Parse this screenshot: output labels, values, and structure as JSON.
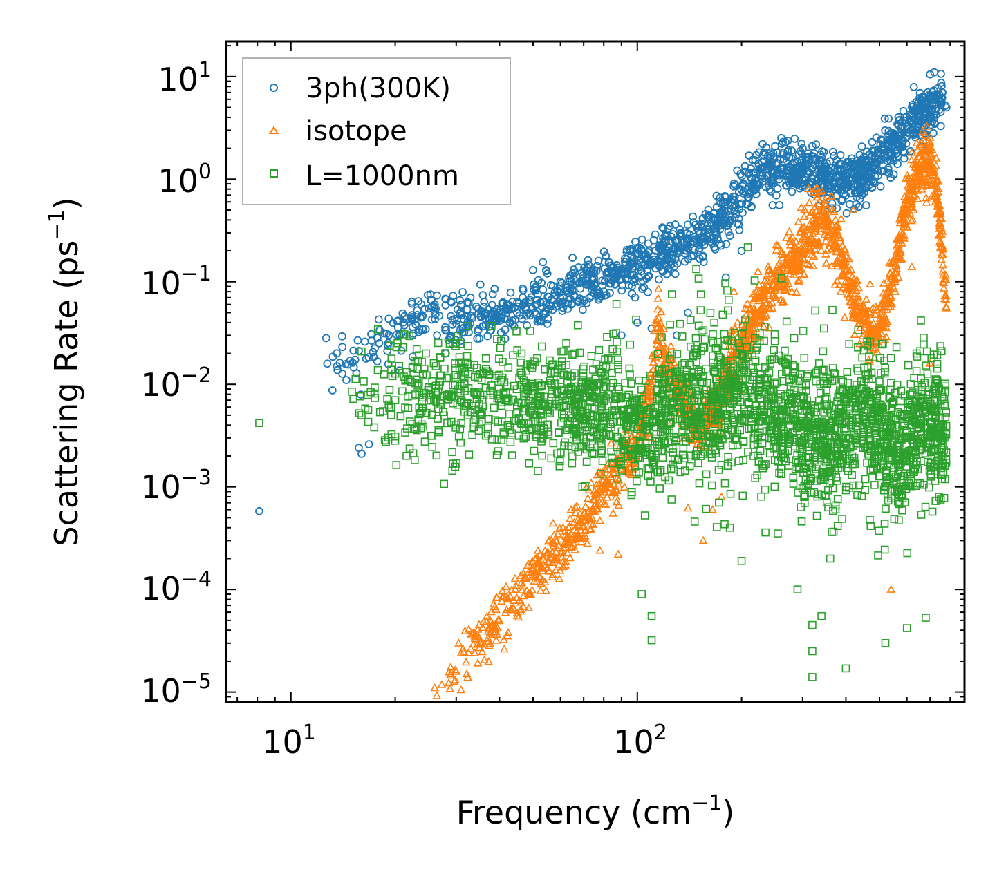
{
  "chart_data": {
    "type": "scatter",
    "xscale": "log",
    "yscale": "log",
    "xlim": [
      6.5,
      880
    ],
    "ylim": [
      8e-06,
      22
    ],
    "xlabel": "Frequency (cm",
    "xlabel_sup": "−1",
    "xlabel_end": ")",
    "ylabel": "Scattering Rate (ps",
    "ylabel_sup": "−1",
    "ylabel_end": ")",
    "x_ticks": [
      {
        "value": 10,
        "base": "10",
        "exp": "1"
      },
      {
        "value": 100,
        "base": "10",
        "exp": "2"
      }
    ],
    "y_ticks": [
      {
        "value": 10,
        "base": "10",
        "exp": "1"
      },
      {
        "value": 1,
        "base": "10",
        "exp": "0"
      },
      {
        "value": 0.1,
        "base": "10",
        "exp": "−1"
      },
      {
        "value": 0.01,
        "base": "10",
        "exp": "−2"
      },
      {
        "value": 0.001,
        "base": "10",
        "exp": "−3"
      },
      {
        "value": 0.0001,
        "base": "10",
        "exp": "−4"
      },
      {
        "value": 1e-05,
        "base": "10",
        "exp": "−5"
      }
    ],
    "legend_position": "top-left",
    "series": [
      {
        "name": "3ph(300K)",
        "marker": "circle",
        "color": "#1f77b4",
        "trend": [
          [
            12,
            0.012
          ],
          [
            25,
            0.05
          ],
          [
            35,
            0.04
          ],
          [
            50,
            0.06
          ],
          [
            70,
            0.09
          ],
          [
            90,
            0.12
          ],
          [
            105,
            0.15
          ],
          [
            130,
            0.2
          ],
          [
            150,
            0.25
          ],
          [
            180,
            0.45
          ],
          [
            230,
            1.2
          ],
          [
            300,
            1.3
          ],
          [
            400,
            0.9
          ],
          [
            470,
            1.2
          ],
          [
            560,
            2.5
          ],
          [
            700,
            5.0
          ],
          [
            760,
            6.0
          ]
        ],
        "points": [
          [
            8.1,
            0.00058
          ],
          [
            15.7,
            0.0024
          ],
          [
            16,
            0.0021
          ],
          [
            16.8,
            0.0026
          ],
          [
            25,
            0.055
          ],
          [
            26,
            0.06
          ],
          [
            28,
            0.02
          ],
          [
            30,
            0.025
          ],
          [
            33,
            0.07
          ],
          [
            35,
            0.028
          ],
          [
            40,
            0.05
          ],
          [
            45,
            0.063
          ],
          [
            50,
            0.13
          ],
          [
            55,
            0.12
          ],
          [
            60,
            0.1
          ],
          [
            65,
            0.12
          ],
          [
            80,
            0.08
          ],
          [
            90,
            0.03
          ],
          [
            100,
            0.04
          ],
          [
            110,
            0.035
          ],
          [
            115,
            0.035
          ],
          [
            130,
            0.03
          ],
          [
            140,
            0.05
          ],
          [
            180,
            0.11
          ],
          [
            200,
            0.2
          ],
          [
            210,
            1.7
          ],
          [
            230,
            2.2
          ],
          [
            300,
            2.0
          ],
          [
            320,
            2.1
          ],
          [
            700,
            10.5
          ],
          [
            720,
            11.0
          ],
          [
            760,
            7.0
          ],
          [
            775,
            5.2
          ],
          [
            780,
            5.0
          ]
        ]
      },
      {
        "name": "isotope",
        "marker": "triangle",
        "color": "#ff7f0e",
        "trend": [
          [
            26,
            1e-05
          ],
          [
            30,
            2e-05
          ],
          [
            40,
            5e-05
          ],
          [
            50,
            0.00013
          ],
          [
            60,
            0.00025
          ],
          [
            70,
            0.00045
          ],
          [
            80,
            0.001
          ],
          [
            90,
            0.0016
          ],
          [
            100,
            0.0025
          ],
          [
            110,
            0.01
          ],
          [
            115,
            0.04
          ],
          [
            120,
            0.015
          ],
          [
            130,
            0.008
          ],
          [
            150,
            0.004
          ],
          [
            170,
            0.006
          ],
          [
            185,
            0.015
          ],
          [
            195,
            0.02
          ],
          [
            205,
            0.03
          ],
          [
            220,
            0.05
          ],
          [
            240,
            0.08
          ],
          [
            260,
            0.12
          ],
          [
            280,
            0.15
          ],
          [
            300,
            0.2
          ],
          [
            320,
            0.3
          ],
          [
            340,
            0.45
          ],
          [
            360,
            0.35
          ],
          [
            380,
            0.2
          ],
          [
            400,
            0.12
          ],
          [
            420,
            0.07
          ],
          [
            450,
            0.04
          ],
          [
            480,
            0.03
          ],
          [
            520,
            0.05
          ],
          [
            560,
            0.15
          ],
          [
            600,
            0.6
          ],
          [
            650,
            1.2
          ],
          [
            700,
            1.5
          ],
          [
            740,
            0.6
          ],
          [
            780,
            0.05
          ]
        ],
        "points": [
          [
            26,
            1.1e-05
          ],
          [
            31,
            1.05e-05
          ],
          [
            35,
            2.7e-05
          ],
          [
            38,
            4.5e-05
          ],
          [
            78,
            0.00024
          ],
          [
            88,
            0.00022
          ],
          [
            115,
            0.085
          ],
          [
            140,
            0.00062
          ],
          [
            155,
            0.0003
          ],
          [
            165,
            0.0006
          ],
          [
            175,
            0.0008
          ],
          [
            190,
            0.08
          ],
          [
            340,
            0.7
          ],
          [
            420,
            0.5
          ],
          [
            470,
            0.095
          ],
          [
            620,
            0.14
          ],
          [
            680,
            1.7
          ],
          [
            730,
            1.6
          ],
          [
            540,
            0.0001
          ],
          [
            700,
            0.016
          ]
        ]
      },
      {
        "name": "L=1000nm",
        "marker": "square",
        "color": "#2ca02c",
        "trend": [
          [
            15,
            0.007
          ],
          [
            25,
            0.0075
          ],
          [
            40,
            0.0075
          ],
          [
            60,
            0.007
          ],
          [
            75,
            0.006
          ],
          [
            90,
            0.005
          ],
          [
            100,
            0.004
          ],
          [
            110,
            0.0035
          ],
          [
            120,
            0.005
          ],
          [
            140,
            0.007
          ],
          [
            160,
            0.006
          ],
          [
            180,
            0.008
          ],
          [
            200,
            0.008
          ],
          [
            220,
            0.006
          ],
          [
            260,
            0.005
          ],
          [
            300,
            0.004
          ],
          [
            340,
            0.003
          ],
          [
            380,
            0.003
          ],
          [
            420,
            0.005
          ],
          [
            460,
            0.004
          ],
          [
            520,
            0.003
          ],
          [
            560,
            0.002
          ],
          [
            600,
            0.003
          ],
          [
            650,
            0.004
          ],
          [
            700,
            0.004
          ],
          [
            750,
            0.003
          ],
          [
            780,
            0.003
          ]
        ],
        "points": [
          [
            8.1,
            0.0042
          ],
          [
            15,
            0.0085
          ],
          [
            16,
            0.005
          ],
          [
            20,
            0.007
          ],
          [
            20,
            0.0031
          ],
          [
            22,
            0.011
          ],
          [
            29,
            0.0075
          ],
          [
            36,
            0.0078
          ],
          [
            50,
            0.0078
          ],
          [
            60,
            0.011
          ],
          [
            80,
            0.0095
          ],
          [
            88,
            0.014
          ],
          [
            103,
            9e-05
          ],
          [
            110,
            3.2e-05
          ],
          [
            110,
            5.5e-05
          ],
          [
            185,
            0.0004
          ],
          [
            200,
            0.00019
          ],
          [
            290,
            0.0001
          ],
          [
            320,
            4.5e-05
          ],
          [
            320,
            2.5e-05
          ],
          [
            320,
            1.4e-05
          ],
          [
            340,
            5.5e-05
          ],
          [
            400,
            1.7e-05
          ],
          [
            470,
            0.026
          ],
          [
            520,
            3e-05
          ],
          [
            540,
            0.018
          ],
          [
            560,
            0.023
          ],
          [
            600,
            4.2e-05
          ],
          [
            680,
            5.3e-05
          ]
        ]
      }
    ]
  }
}
